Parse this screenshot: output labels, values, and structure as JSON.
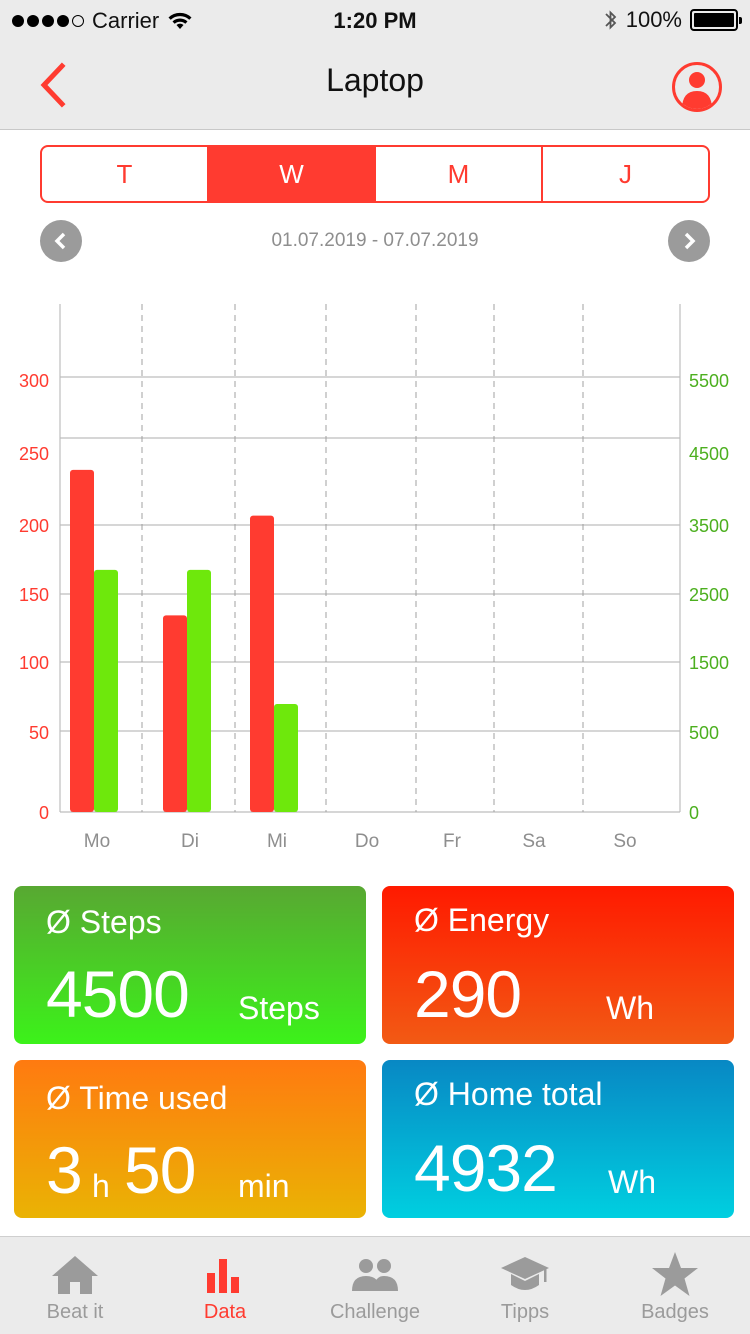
{
  "status": {
    "carrier": "Carrier",
    "time": "1:20 PM",
    "battery": "100%"
  },
  "nav": {
    "title": "Laptop",
    "back_icon": "chevron-left-icon",
    "profile_icon": "user-avatar-icon"
  },
  "segments": [
    {
      "label": "T",
      "active": false
    },
    {
      "label": "W",
      "active": true
    },
    {
      "label": "M",
      "active": false
    },
    {
      "label": "J",
      "active": false
    }
  ],
  "date_range": "01.07.2019 - 07.07.2019",
  "colors": {
    "accent": "#ff3b30",
    "energy_bar": "#ff3b30",
    "steps_bar": "#6ee80c",
    "left_axis": "#ff3b30",
    "right_axis": "#4caf1f",
    "grid": "#bdbdbd"
  },
  "chart_data": {
    "type": "bar",
    "categories": [
      "Mo",
      "Di",
      "Mi",
      "Do",
      "Fr",
      "Sa",
      "So"
    ],
    "series": [
      {
        "axis": "left",
        "color": "#ff3b30",
        "values": [
          247,
          142,
          214,
          0,
          0,
          0,
          0
        ]
      },
      {
        "axis": "right",
        "color": "#6ee80c",
        "values": [
          2850,
          2850,
          900,
          0,
          0,
          0,
          0
        ]
      }
    ],
    "left_axis": {
      "ticks": [
        0,
        50,
        100,
        150,
        200,
        250,
        300
      ],
      "range": [
        0,
        300
      ]
    },
    "right_axis": {
      "ticks": [
        0,
        500,
        1500,
        2500,
        3500,
        4500,
        5500
      ],
      "range": [
        0,
        5500
      ]
    },
    "legend": "none",
    "grid": true
  },
  "cards": {
    "steps": {
      "label": "Ø Steps",
      "value": "4500",
      "unit": "Steps"
    },
    "energy": {
      "label": "Ø Energy",
      "value": "290",
      "unit": "Wh"
    },
    "time": {
      "label": "Ø Time used",
      "hours": "3",
      "h_unit": "h",
      "minutes": "50",
      "m_unit": "min"
    },
    "home": {
      "label": "Ø Home total",
      "value": "4932",
      "unit": "Wh"
    }
  },
  "tabs": [
    {
      "label": "Beat it",
      "icon": "home-icon",
      "active": false
    },
    {
      "label": "Data",
      "icon": "bar-chart-icon",
      "active": true
    },
    {
      "label": "Challenge",
      "icon": "people-icon",
      "active": false
    },
    {
      "label": "Tipps",
      "icon": "graduation-cap-icon",
      "active": false
    },
    {
      "label": "Badges",
      "icon": "star-icon",
      "active": false
    }
  ]
}
